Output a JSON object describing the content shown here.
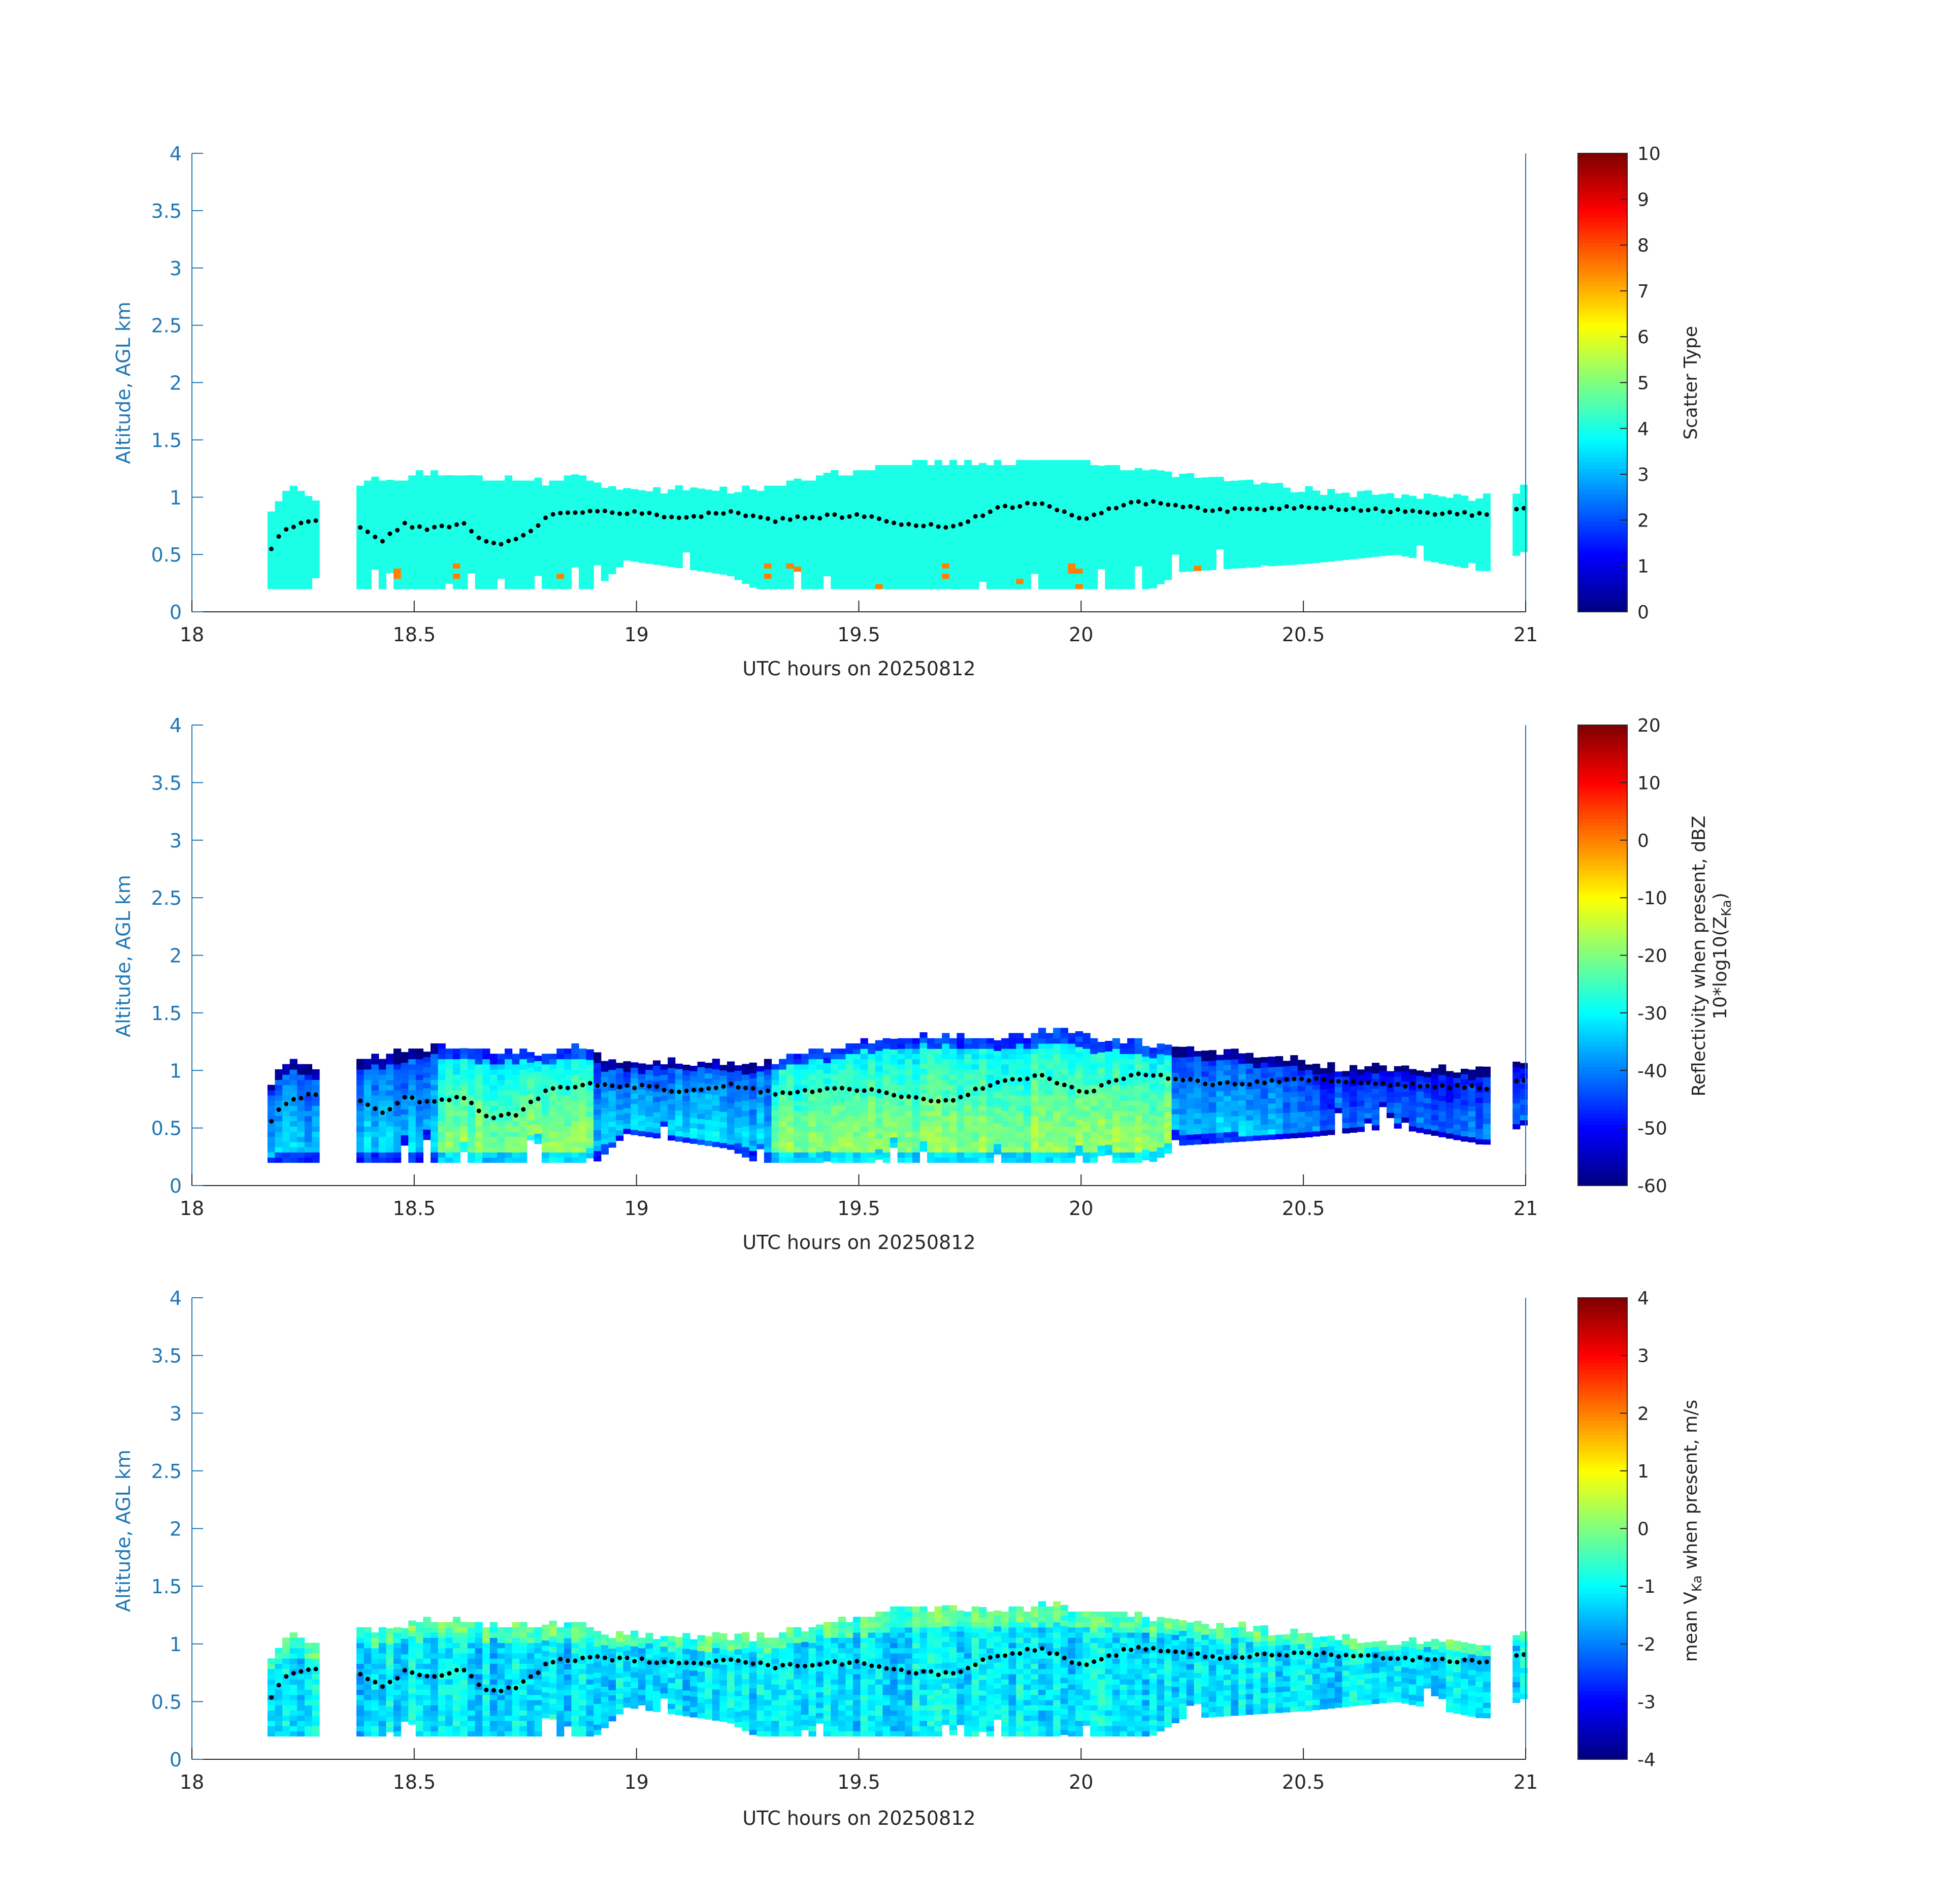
{
  "colors": {
    "axis_left": "#1f77b4",
    "axis_bottom": "#262626",
    "dots": "#000000",
    "background": "#ffffff",
    "colormap": "jet"
  },
  "chart_data": [
    {
      "type": "heatmap",
      "xlabel": "UTC hours on 20250812",
      "ylabel": "Altitude, AGL km",
      "xlim": [
        18,
        21
      ],
      "ylim": [
        0,
        4
      ],
      "xticks": [
        "18",
        "18.5",
        "19",
        "19.5",
        "20",
        "20.5",
        "21"
      ],
      "yticks": [
        "0",
        "0.5",
        "1",
        "1.5",
        "2",
        "2.5",
        "3",
        "3.5",
        "4"
      ],
      "colorbar": {
        "label": "Scatter Type",
        "range": [
          0,
          10
        ],
        "ticks": [
          "0",
          "1",
          "2",
          "3",
          "4",
          "5",
          "6",
          "7",
          "8",
          "9",
          "10"
        ]
      },
      "field": "scatter_type",
      "description_values": {
        "cloud": 4,
        "precipitation": 7.5
      },
      "overlay": "cloud base (black dots)"
    },
    {
      "type": "heatmap",
      "xlabel": "UTC hours on 20250812",
      "ylabel": "Altitude, AGL km",
      "xlim": [
        18,
        21
      ],
      "ylim": [
        0,
        4
      ],
      "xticks": [
        "18",
        "18.5",
        "19",
        "19.5",
        "20",
        "20.5",
        "21"
      ],
      "yticks": [
        "0",
        "0.5",
        "1",
        "1.5",
        "2",
        "2.5",
        "3",
        "3.5",
        "4"
      ],
      "colorbar": {
        "label_line1": "Reflectivity when present, dBZ",
        "label_line2_prefix": "10*log10(Z",
        "label_line2_sub": "Ka",
        "label_line2_suffix": ")",
        "range": [
          -60,
          20
        ],
        "ticks": [
          "-60",
          "-50",
          "-40",
          "-30",
          "-20",
          "-10",
          "0",
          "10",
          "20"
        ]
      },
      "field": "reflectivity_dbz",
      "overlay": "cloud base (black dots)"
    },
    {
      "type": "heatmap",
      "xlabel": "UTC hours on 20250812",
      "ylabel": "Altitude, AGL km",
      "xlim": [
        18,
        21
      ],
      "ylim": [
        0,
        4
      ],
      "xticks": [
        "18",
        "18.5",
        "19",
        "19.5",
        "20",
        "20.5",
        "21"
      ],
      "yticks": [
        "0",
        "0.5",
        "1",
        "1.5",
        "2",
        "2.5",
        "3",
        "3.5",
        "4"
      ],
      "colorbar": {
        "label_prefix": "mean V",
        "label_sub": "Ka",
        "label_suffix": " when present, m/s",
        "range": [
          -4,
          4
        ],
        "ticks": [
          "-4",
          "-3",
          "-2",
          "-1",
          "0",
          "1",
          "2",
          "3",
          "4"
        ]
      },
      "field": "mean_velocity",
      "overlay": "cloud base (black dots)"
    }
  ],
  "echo_profile": {
    "time_step_hours": 0.01667,
    "gaps": [
      [
        18.28,
        18.355
      ],
      [
        20.92,
        20.955
      ]
    ],
    "cloud_top_km": [
      [
        18.17,
        0.88
      ],
      [
        18.21,
        1.08
      ],
      [
        18.28,
        0.95
      ],
      [
        18.36,
        1.1
      ],
      [
        18.45,
        1.13
      ],
      [
        18.55,
        1.2
      ],
      [
        18.7,
        1.14
      ],
      [
        18.78,
        1.12
      ],
      [
        18.86,
        1.18
      ],
      [
        18.95,
        1.05
      ],
      [
        19.1,
        1.05
      ],
      [
        19.27,
        1.05
      ],
      [
        19.4,
        1.15
      ],
      [
        19.5,
        1.22
      ],
      [
        19.65,
        1.3
      ],
      [
        19.8,
        1.27
      ],
      [
        19.95,
        1.32
      ],
      [
        20.05,
        1.25
      ],
      [
        20.15,
        1.2
      ],
      [
        20.3,
        1.15
      ],
      [
        20.42,
        1.1
      ],
      [
        20.55,
        1.02
      ],
      [
        20.7,
        1.0
      ],
      [
        20.9,
        0.98
      ],
      [
        21.0,
        1.06
      ]
    ],
    "echo_bottom_km": [
      [
        18.17,
        0.2
      ],
      [
        18.5,
        0.2
      ],
      [
        18.9,
        0.2
      ],
      [
        18.97,
        0.45
      ],
      [
        19.2,
        0.32
      ],
      [
        19.26,
        0.2
      ],
      [
        20.15,
        0.2
      ],
      [
        20.22,
        0.35
      ],
      [
        20.5,
        0.42
      ],
      [
        20.7,
        0.5
      ],
      [
        20.9,
        0.35
      ],
      [
        21.0,
        0.55
      ]
    ],
    "cloud_base_km": [
      [
        18.17,
        0.55
      ],
      [
        18.2,
        0.72
      ],
      [
        18.26,
        0.8
      ],
      [
        18.36,
        0.76
      ],
      [
        18.42,
        0.62
      ],
      [
        18.47,
        0.76
      ],
      [
        18.53,
        0.72
      ],
      [
        18.6,
        0.78
      ],
      [
        18.66,
        0.58
      ],
      [
        18.72,
        0.62
      ],
      [
        18.8,
        0.85
      ],
      [
        18.9,
        0.88
      ],
      [
        19.0,
        0.86
      ],
      [
        19.1,
        0.82
      ],
      [
        19.2,
        0.88
      ],
      [
        19.3,
        0.8
      ],
      [
        19.4,
        0.83
      ],
      [
        19.5,
        0.84
      ],
      [
        19.6,
        0.76
      ],
      [
        19.7,
        0.74
      ],
      [
        19.8,
        0.9
      ],
      [
        19.9,
        0.96
      ],
      [
        20.0,
        0.8
      ],
      [
        20.1,
        0.96
      ],
      [
        20.2,
        0.94
      ],
      [
        20.3,
        0.88
      ],
      [
        20.4,
        0.9
      ],
      [
        20.5,
        0.92
      ],
      [
        20.6,
        0.9
      ],
      [
        20.7,
        0.88
      ],
      [
        20.8,
        0.86
      ],
      [
        20.9,
        0.85
      ],
      [
        20.96,
        0.9
      ],
      [
        21.0,
        0.9
      ]
    ]
  }
}
